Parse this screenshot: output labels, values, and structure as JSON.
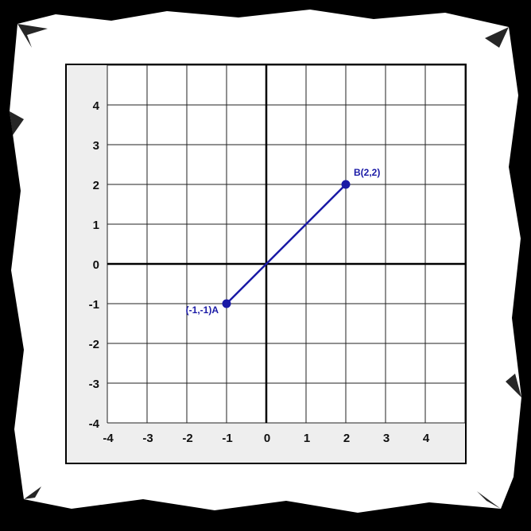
{
  "chart_data": {
    "type": "coordinate-plane",
    "x_ticks": [
      "-4",
      "-3",
      "-2",
      "-1",
      "0",
      "1",
      "2",
      "3",
      "4"
    ],
    "y_ticks": [
      "4",
      "3",
      "2",
      "1",
      "0",
      "-1",
      "-2",
      "-3",
      "-4"
    ],
    "xlim": [
      -4,
      5
    ],
    "ylim": [
      -4,
      5
    ],
    "grid": true,
    "points": [
      {
        "label": "(-1,-1)A",
        "x": -1,
        "y": -1,
        "label_side": "left"
      },
      {
        "label": "B(2,2)",
        "x": 2,
        "y": 2,
        "label_side": "above-right"
      }
    ],
    "segment": {
      "from": "A",
      "to": "B"
    },
    "colors": {
      "segment": "#1a1aa6",
      "axis": "#000000",
      "grid": "#222222",
      "plot_background": "#ffffff",
      "panel_background": "#eeeeee",
      "frame": "#000000",
      "paper": "#ffffff"
    }
  }
}
